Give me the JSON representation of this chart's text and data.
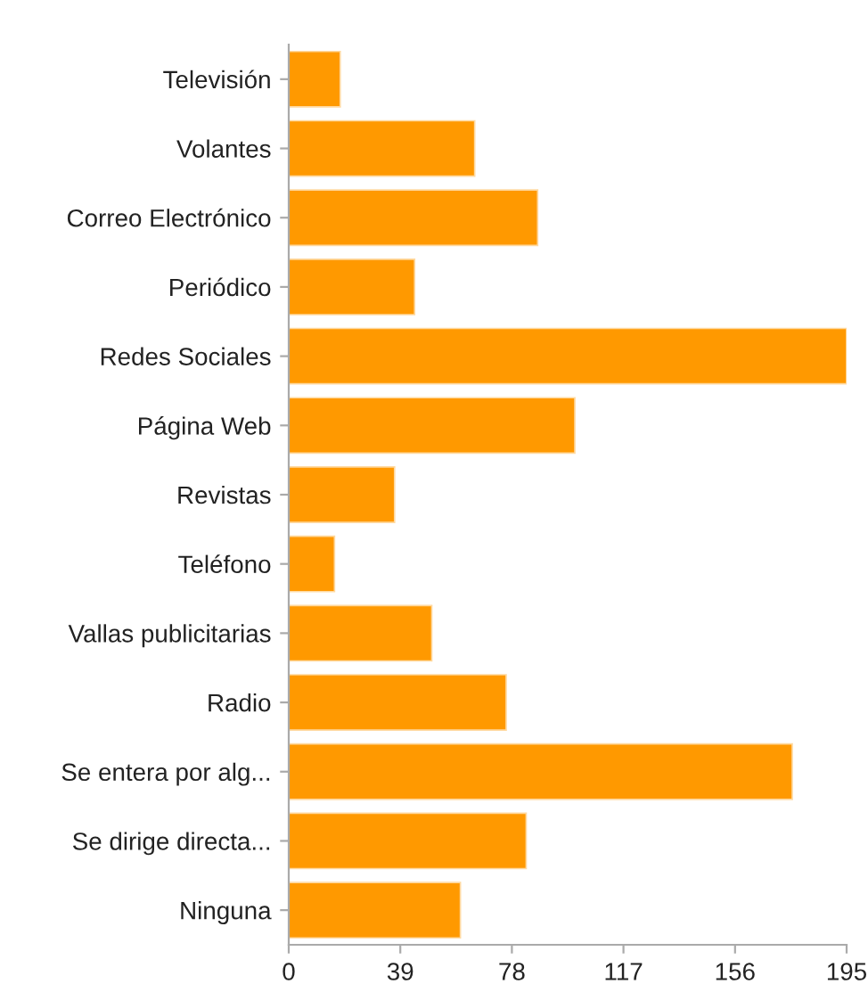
{
  "chart_data": {
    "type": "bar",
    "orientation": "horizontal",
    "categories": [
      "Televisión",
      "Volantes",
      "Correo Electrónico",
      "Periódico",
      "Redes Sociales",
      "Página Web",
      "Revistas",
      "Teléfono",
      "Vallas publicitarias",
      "Radio",
      "Se entera por alg...",
      "Se dirige directa...",
      "Ninguna"
    ],
    "values": [
      18,
      65,
      87,
      44,
      195,
      100,
      37,
      16,
      50,
      76,
      176,
      83,
      60
    ],
    "color": "#ff9900",
    "xlim": [
      0,
      195
    ],
    "xticks": [
      0,
      39,
      78,
      117,
      156,
      195
    ],
    "grid": false
  }
}
